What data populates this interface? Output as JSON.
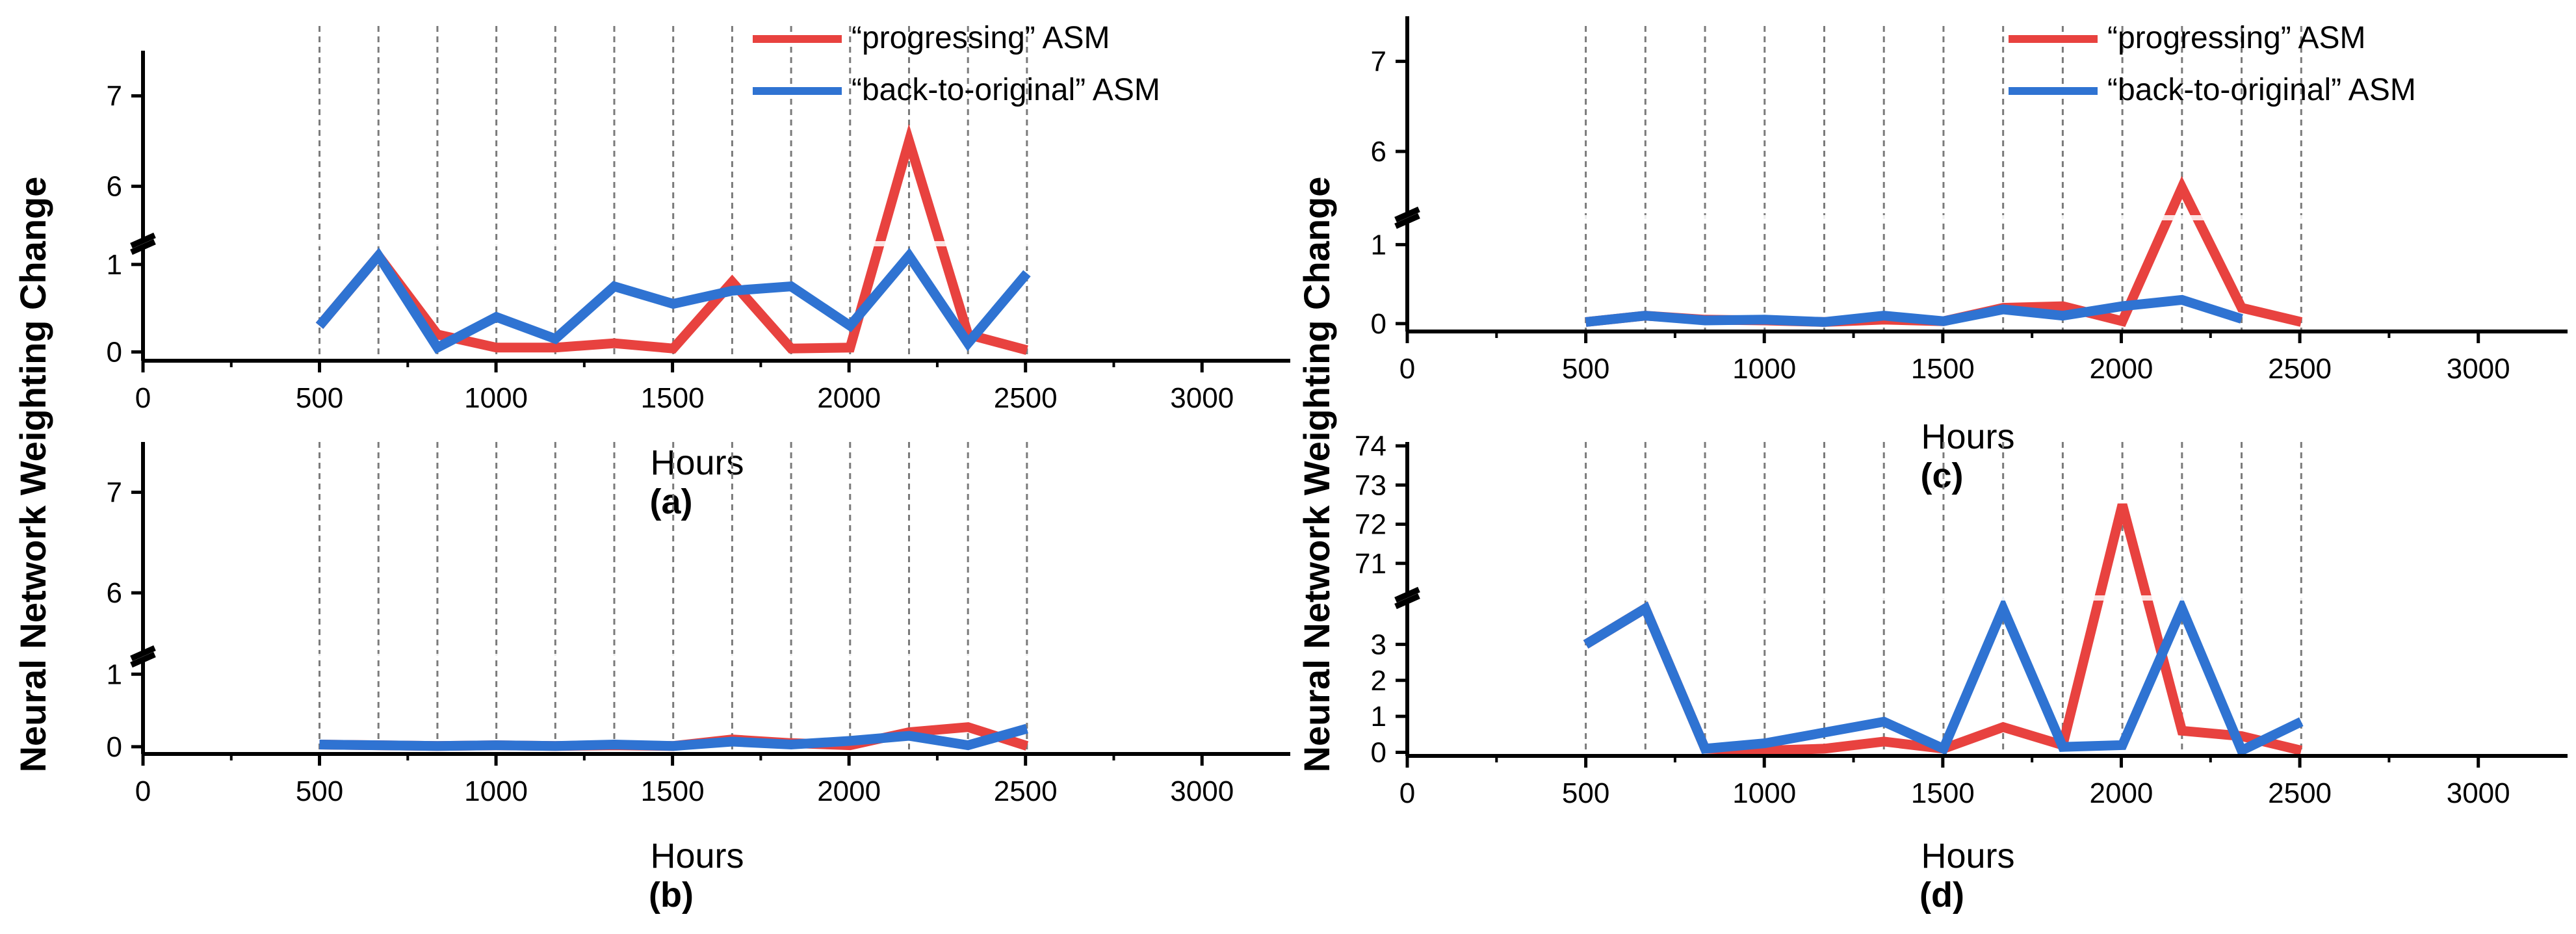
{
  "y_axis_title": "Neural Network Weighting Change",
  "colors": {
    "progressing": "#e8423f",
    "back": "#2f73d2",
    "axis": "#000000",
    "grid": "#7a7a7a"
  },
  "chart_data": [
    {
      "id": "a",
      "type": "line",
      "panel_label": "(a)",
      "xlabel": "Hours",
      "xlim": [
        0,
        3250
      ],
      "xticks": [
        0,
        500,
        1000,
        1500,
        2000,
        2500,
        3000
      ],
      "lower_range": [
        -0.1,
        1.2
      ],
      "upper_range": [
        5.4,
        7.5
      ],
      "yticks_lower": [
        0,
        1
      ],
      "yticks_upper": [
        6,
        7
      ],
      "vlines": [
        500,
        667,
        834,
        1001,
        1168,
        1335,
        1502,
        1669,
        1836,
        2003,
        2170,
        2337,
        2504
      ],
      "x": [
        500,
        667,
        834,
        1001,
        1168,
        1335,
        1502,
        1669,
        1836,
        2003,
        2170,
        2337,
        2504
      ],
      "series": [
        {
          "name": "“progressing” ASM",
          "color": "#e8423f",
          "values": [
            0.3,
            1.1,
            0.2,
            0.05,
            0.05,
            0.1,
            0.04,
            0.8,
            0.04,
            0.05,
            6.5,
            0.2,
            0.02
          ]
        },
        {
          "name": "“back-to-original” ASM",
          "color": "#2f73d2",
          "values": [
            0.3,
            1.1,
            0.05,
            0.4,
            0.15,
            0.75,
            0.55,
            0.7,
            0.75,
            0.3,
            1.1,
            0.1,
            0.9
          ]
        }
      ]
    },
    {
      "id": "b",
      "type": "line",
      "panel_label": "(b)",
      "xlabel": "Hours",
      "xlim": [
        0,
        3250
      ],
      "xticks": [
        0,
        500,
        1000,
        1500,
        2000,
        2500,
        3000
      ],
      "lower_range": [
        -0.1,
        1.2
      ],
      "upper_range": [
        5.4,
        7.5
      ],
      "yticks_lower": [
        0,
        1
      ],
      "yticks_upper": [
        6,
        7
      ],
      "vlines": [
        500,
        667,
        834,
        1001,
        1168,
        1335,
        1502,
        1669,
        1836,
        2003,
        2170,
        2337,
        2504
      ],
      "x": [
        500,
        667,
        834,
        1001,
        1168,
        1335,
        1502,
        1669,
        1836,
        2003,
        2170,
        2337,
        2504
      ],
      "series": [
        {
          "name": "“progressing” ASM",
          "color": "#e8423f",
          "values": [
            0.03,
            0.02,
            0.01,
            0.02,
            0.01,
            0.02,
            0.01,
            0.1,
            0.05,
            0.02,
            0.2,
            0.27,
            0.01
          ]
        },
        {
          "name": "“back-to-original” ASM",
          "color": "#2f73d2",
          "values": [
            0.03,
            0.02,
            0.01,
            0.02,
            0.01,
            0.03,
            0.01,
            0.07,
            0.03,
            0.08,
            0.15,
            0.02,
            0.25
          ]
        }
      ]
    },
    {
      "id": "c",
      "type": "line",
      "panel_label": "(c)",
      "xlabel": "Hours",
      "xlim": [
        0,
        3250
      ],
      "xticks": [
        0,
        500,
        1000,
        1500,
        2000,
        2500,
        3000
      ],
      "lower_range": [
        -0.1,
        1.3
      ],
      "upper_range": [
        5.3,
        7.5
      ],
      "yticks_lower": [
        0,
        1
      ],
      "yticks_upper": [
        6,
        7
      ],
      "vlines": [
        500,
        667,
        834,
        1001,
        1168,
        1335,
        1502,
        1669,
        1836,
        2003,
        2170,
        2337,
        2504
      ],
      "x": [
        500,
        667,
        834,
        1001,
        1168,
        1335,
        1502,
        1669,
        1836,
        2003,
        2170,
        2337,
        2504
      ],
      "series": [
        {
          "name": "“progressing” ASM",
          "color": "#e8423f",
          "values": [
            0.02,
            0.1,
            0.05,
            0.04,
            0.02,
            0.05,
            0.03,
            0.2,
            0.22,
            0.03,
            5.6,
            0.2,
            0.02
          ]
        },
        {
          "name": "“back-to-original” ASM",
          "color": "#2f73d2",
          "values": [
            0.02,
            0.1,
            0.04,
            0.05,
            0.02,
            0.1,
            0.03,
            0.18,
            0.1,
            0.22,
            0.3,
            0.06,
            null
          ]
        }
      ]
    },
    {
      "id": "d",
      "type": "line",
      "panel_label": "(d)",
      "xlabel": "Hours",
      "xlim": [
        0,
        3250
      ],
      "xticks": [
        0,
        500,
        1000,
        1500,
        2000,
        2500,
        3000
      ],
      "lower_range": [
        -0.1,
        4.2
      ],
      "upper_range": [
        70.2,
        74.1
      ],
      "yticks_lower": [
        0,
        1,
        2,
        3
      ],
      "yticks_upper": [
        71,
        72,
        73,
        74
      ],
      "vlines": [
        500,
        667,
        834,
        1001,
        1168,
        1335,
        1502,
        1669,
        1836,
        2003,
        2170,
        2337,
        2504
      ],
      "x": [
        500,
        667,
        834,
        1001,
        1168,
        1335,
        1502,
        1669,
        1836,
        2003,
        2170,
        2337,
        2504
      ],
      "series": [
        {
          "name": "“progressing” ASM",
          "color": "#e8423f",
          "values": [
            3.0,
            4.0,
            0.1,
            0.05,
            0.1,
            0.3,
            0.1,
            0.7,
            0.2,
            72.5,
            0.6,
            0.45,
            0.05
          ]
        },
        {
          "name": "“back-to-original” ASM",
          "color": "#2f73d2",
          "values": [
            3.0,
            4.0,
            0.1,
            0.25,
            0.55,
            0.85,
            0.1,
            4.0,
            0.15,
            0.2,
            4.0,
            0.05,
            0.85
          ]
        }
      ]
    }
  ]
}
